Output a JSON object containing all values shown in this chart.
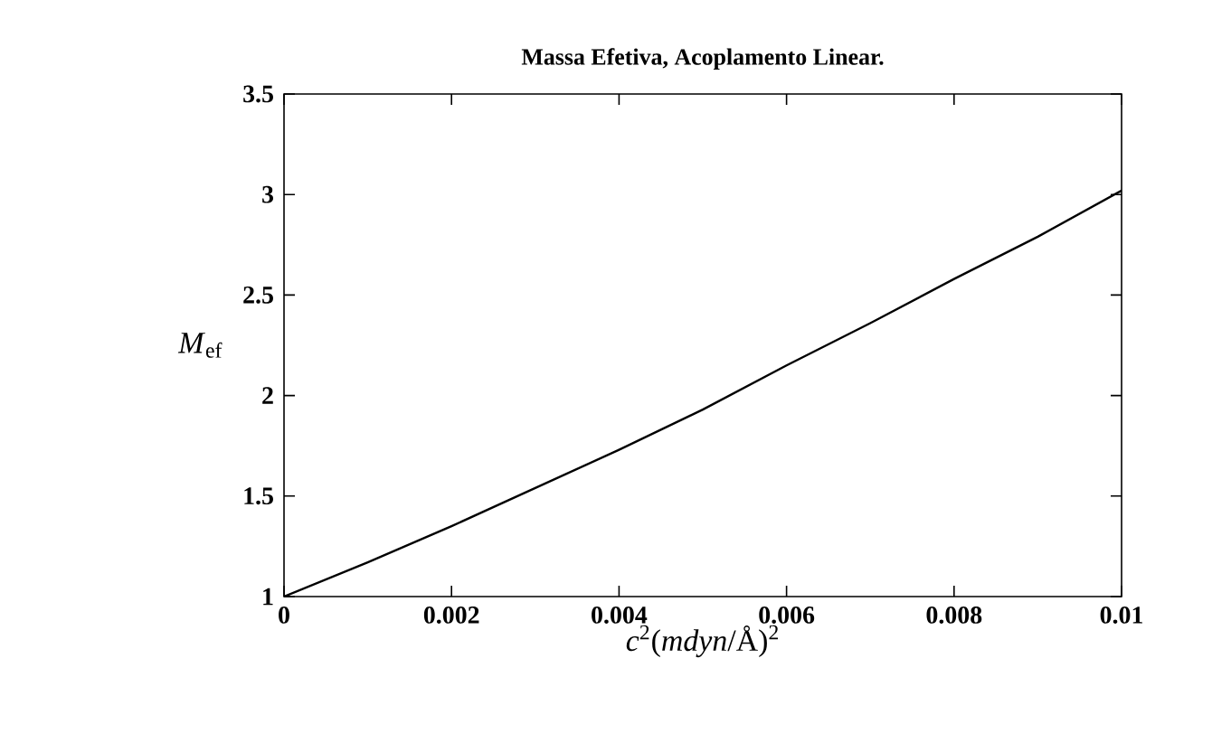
{
  "chart_data": {
    "type": "line",
    "title": "**Massa Efetiva, Acoplamento Linear.**",
    "xlabel": "*c*$^{2}$(*mdyn*/Å)$^{2}$",
    "ylabel": "*M*$_{ef}$",
    "x": [
      0,
      0.001,
      0.002,
      0.003,
      0.004,
      0.005,
      0.006,
      0.007,
      0.008,
      0.009,
      0.01
    ],
    "series": [
      {
        "color": "#000000",
        "values": [
          1,
          1.17,
          1.35,
          1.54,
          1.73,
          1.93,
          2.15,
          2.36,
          2.58,
          2.79,
          3.02
        ]
      }
    ],
    "xlim": [
      0,
      0.01
    ],
    "ylim": [
      1,
      3.5
    ],
    "xticks": [
      0,
      0.002,
      0.004,
      0.006,
      0.008,
      0.01
    ],
    "yticks": [
      1,
      1.5,
      2,
      2.5,
      3,
      3.5
    ],
    "grid": false,
    "marker": "none",
    "line_style": "solid"
  }
}
